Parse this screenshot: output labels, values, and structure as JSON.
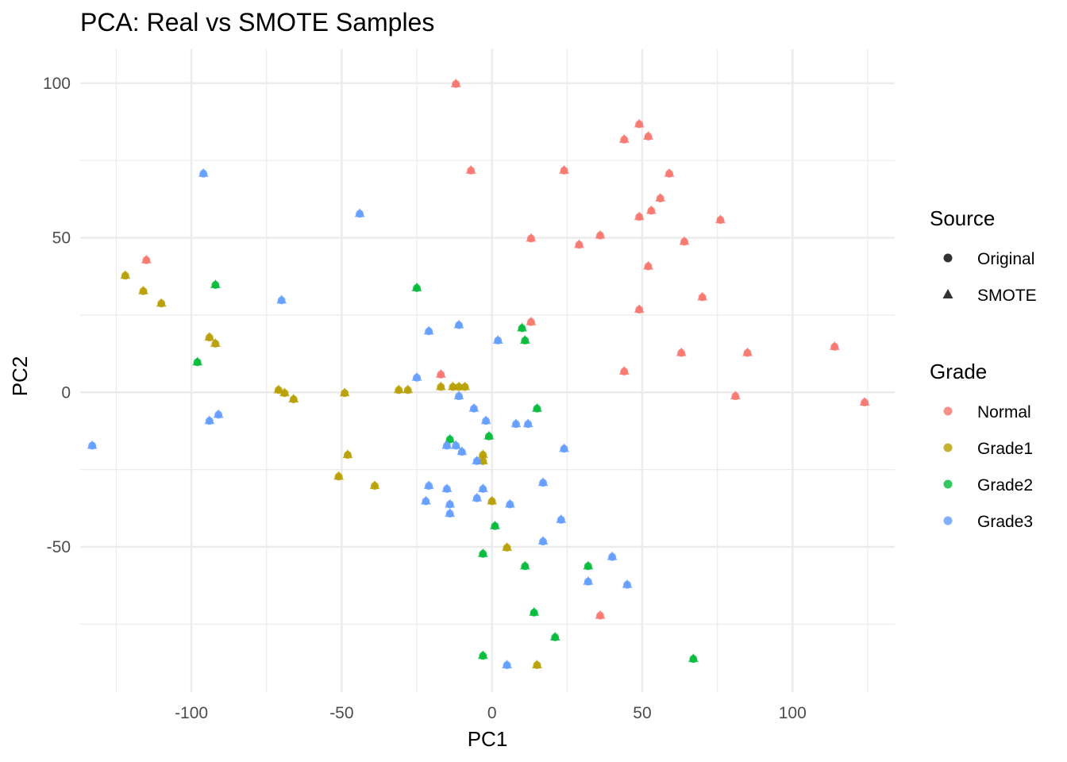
{
  "chart_data": {
    "type": "scatter",
    "title": "PCA: Real vs SMOTE Samples",
    "xlabel": "PC1",
    "ylabel": "PC2",
    "xlim": [
      -137,
      134
    ],
    "ylim": [
      -97,
      111
    ],
    "x_ticks": [
      -100,
      -50,
      0,
      50,
      100
    ],
    "x_tick_labels": [
      "-100",
      "-50",
      "0",
      "50",
      "100"
    ],
    "y_ticks": [
      -50,
      0,
      50,
      100
    ],
    "y_tick_labels": [
      "-50",
      "0",
      "50",
      "100"
    ],
    "x_minor_ticks": [
      -125,
      -75,
      -25,
      25,
      75,
      125
    ],
    "y_minor_ticks": [
      -75,
      -25,
      25,
      75
    ],
    "grid": true,
    "legend_placement": "right",
    "legend": {
      "source": {
        "title": "Source",
        "entries": [
          {
            "label": "Original",
            "shape": "circle"
          },
          {
            "label": "SMOTE",
            "shape": "triangle"
          }
        ]
      },
      "grade": {
        "title": "Grade",
        "entries": [
          {
            "label": "Normal",
            "color": "#F8766D"
          },
          {
            "label": "Grade1",
            "color": "#B79F00"
          },
          {
            "label": "Grade2",
            "color": "#00BA38"
          },
          {
            "label": "Grade3",
            "color": "#619CFF"
          }
        ]
      }
    },
    "series": [
      {
        "name": "Normal",
        "color": "#F8766D",
        "points": [
          [
            -12,
            100
          ],
          [
            49,
            87
          ],
          [
            52,
            83
          ],
          [
            44,
            82
          ],
          [
            -7,
            72
          ],
          [
            24,
            72
          ],
          [
            59,
            71
          ],
          [
            56,
            63
          ],
          [
            53,
            59
          ],
          [
            49,
            57
          ],
          [
            76,
            56
          ],
          [
            36,
            51
          ],
          [
            13,
            50
          ],
          [
            29,
            48
          ],
          [
            64,
            49
          ],
          [
            -115,
            43
          ],
          [
            52,
            41
          ],
          [
            70,
            31
          ],
          [
            49,
            27
          ],
          [
            13,
            23
          ],
          [
            63,
            13
          ],
          [
            85,
            13
          ],
          [
            114,
            15
          ],
          [
            44,
            7
          ],
          [
            -17,
            6
          ],
          [
            81,
            -1
          ],
          [
            124,
            -3
          ],
          [
            36,
            -72
          ]
        ]
      },
      {
        "name": "Grade1",
        "color": "#B79F00",
        "points": [
          [
            -122,
            38
          ],
          [
            -116,
            33
          ],
          [
            -110,
            29
          ],
          [
            -94,
            18
          ],
          [
            -92,
            16
          ],
          [
            -71,
            1
          ],
          [
            -69,
            0
          ],
          [
            -66,
            -2
          ],
          [
            -49,
            0
          ],
          [
            -31,
            1
          ],
          [
            -28,
            1
          ],
          [
            -17,
            2
          ],
          [
            -13,
            2
          ],
          [
            -11,
            2
          ],
          [
            -9,
            2
          ],
          [
            -3,
            -20
          ],
          [
            -3,
            -22
          ],
          [
            -48,
            -20
          ],
          [
            -51,
            -27
          ],
          [
            -39,
            -30
          ],
          [
            0,
            -35
          ],
          [
            5,
            -50
          ],
          [
            15,
            -88
          ]
        ]
      },
      {
        "name": "Grade2",
        "color": "#00BA38",
        "points": [
          [
            -92,
            35
          ],
          [
            -25,
            34
          ],
          [
            -98,
            10
          ],
          [
            10,
            21
          ],
          [
            11,
            17
          ],
          [
            15,
            -5
          ],
          [
            -1,
            -14
          ],
          [
            -14,
            -15
          ],
          [
            1,
            -43
          ],
          [
            -3,
            -52
          ],
          [
            11,
            -56
          ],
          [
            32,
            -56
          ],
          [
            14,
            -71
          ],
          [
            21,
            -79
          ],
          [
            -3,
            -85
          ],
          [
            67,
            -86
          ]
        ]
      },
      {
        "name": "Grade3",
        "color": "#619CFF",
        "points": [
          [
            -96,
            71
          ],
          [
            -44,
            58
          ],
          [
            -70,
            30
          ],
          [
            -21,
            20
          ],
          [
            -11,
            22
          ],
          [
            2,
            17
          ],
          [
            -25,
            5
          ],
          [
            -11,
            -1
          ],
          [
            -6,
            -5
          ],
          [
            -2,
            -9
          ],
          [
            8,
            -10
          ],
          [
            12,
            -10
          ],
          [
            -91,
            -7
          ],
          [
            -94,
            -9
          ],
          [
            -133,
            -17
          ],
          [
            -15,
            -17
          ],
          [
            -12,
            -17
          ],
          [
            -10,
            -19
          ],
          [
            -5,
            -22
          ],
          [
            24,
            -18
          ],
          [
            -21,
            -30
          ],
          [
            -15,
            -31
          ],
          [
            -3,
            -31
          ],
          [
            17,
            -29
          ],
          [
            -22,
            -35
          ],
          [
            -14,
            -36
          ],
          [
            -5,
            -34
          ],
          [
            6,
            -36
          ],
          [
            -14,
            -39
          ],
          [
            23,
            -41
          ],
          [
            17,
            -48
          ],
          [
            40,
            -53
          ],
          [
            32,
            -61
          ],
          [
            45,
            -62
          ],
          [
            5,
            -88
          ]
        ]
      }
    ]
  }
}
